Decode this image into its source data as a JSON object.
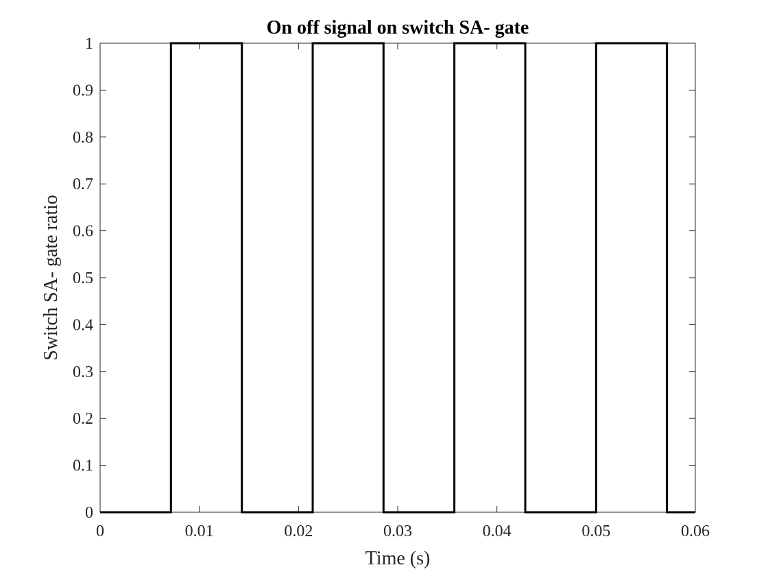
{
  "chart_data": {
    "type": "line",
    "title": "On off signal on switch SA- gate",
    "xlabel": "Time (s)",
    "ylabel": "Switch SA- gate ratio",
    "xlim": [
      0,
      0.06
    ],
    "ylim": [
      0,
      1
    ],
    "x_ticks": [
      "0",
      "0.01",
      "0.02",
      "0.03",
      "0.04",
      "0.05",
      "0.06"
    ],
    "y_ticks": [
      "0",
      "0.1",
      "0.2",
      "0.3",
      "0.4",
      "0.5",
      "0.6",
      "0.7",
      "0.8",
      "0.9",
      "1"
    ],
    "grid": false,
    "line_color": "#000000",
    "series": [
      {
        "x": [
          0,
          0.00714,
          0.00714,
          0.01429,
          0.01429,
          0.02143,
          0.02143,
          0.02857,
          0.02857,
          0.03571,
          0.03571,
          0.04286,
          0.04286,
          0.05,
          0.05,
          0.05714,
          0.05714,
          0.06
        ],
        "y": [
          0,
          0,
          1,
          1,
          0,
          0,
          1,
          1,
          0,
          0,
          1,
          1,
          0,
          0,
          1,
          1,
          0,
          0
        ]
      }
    ]
  }
}
